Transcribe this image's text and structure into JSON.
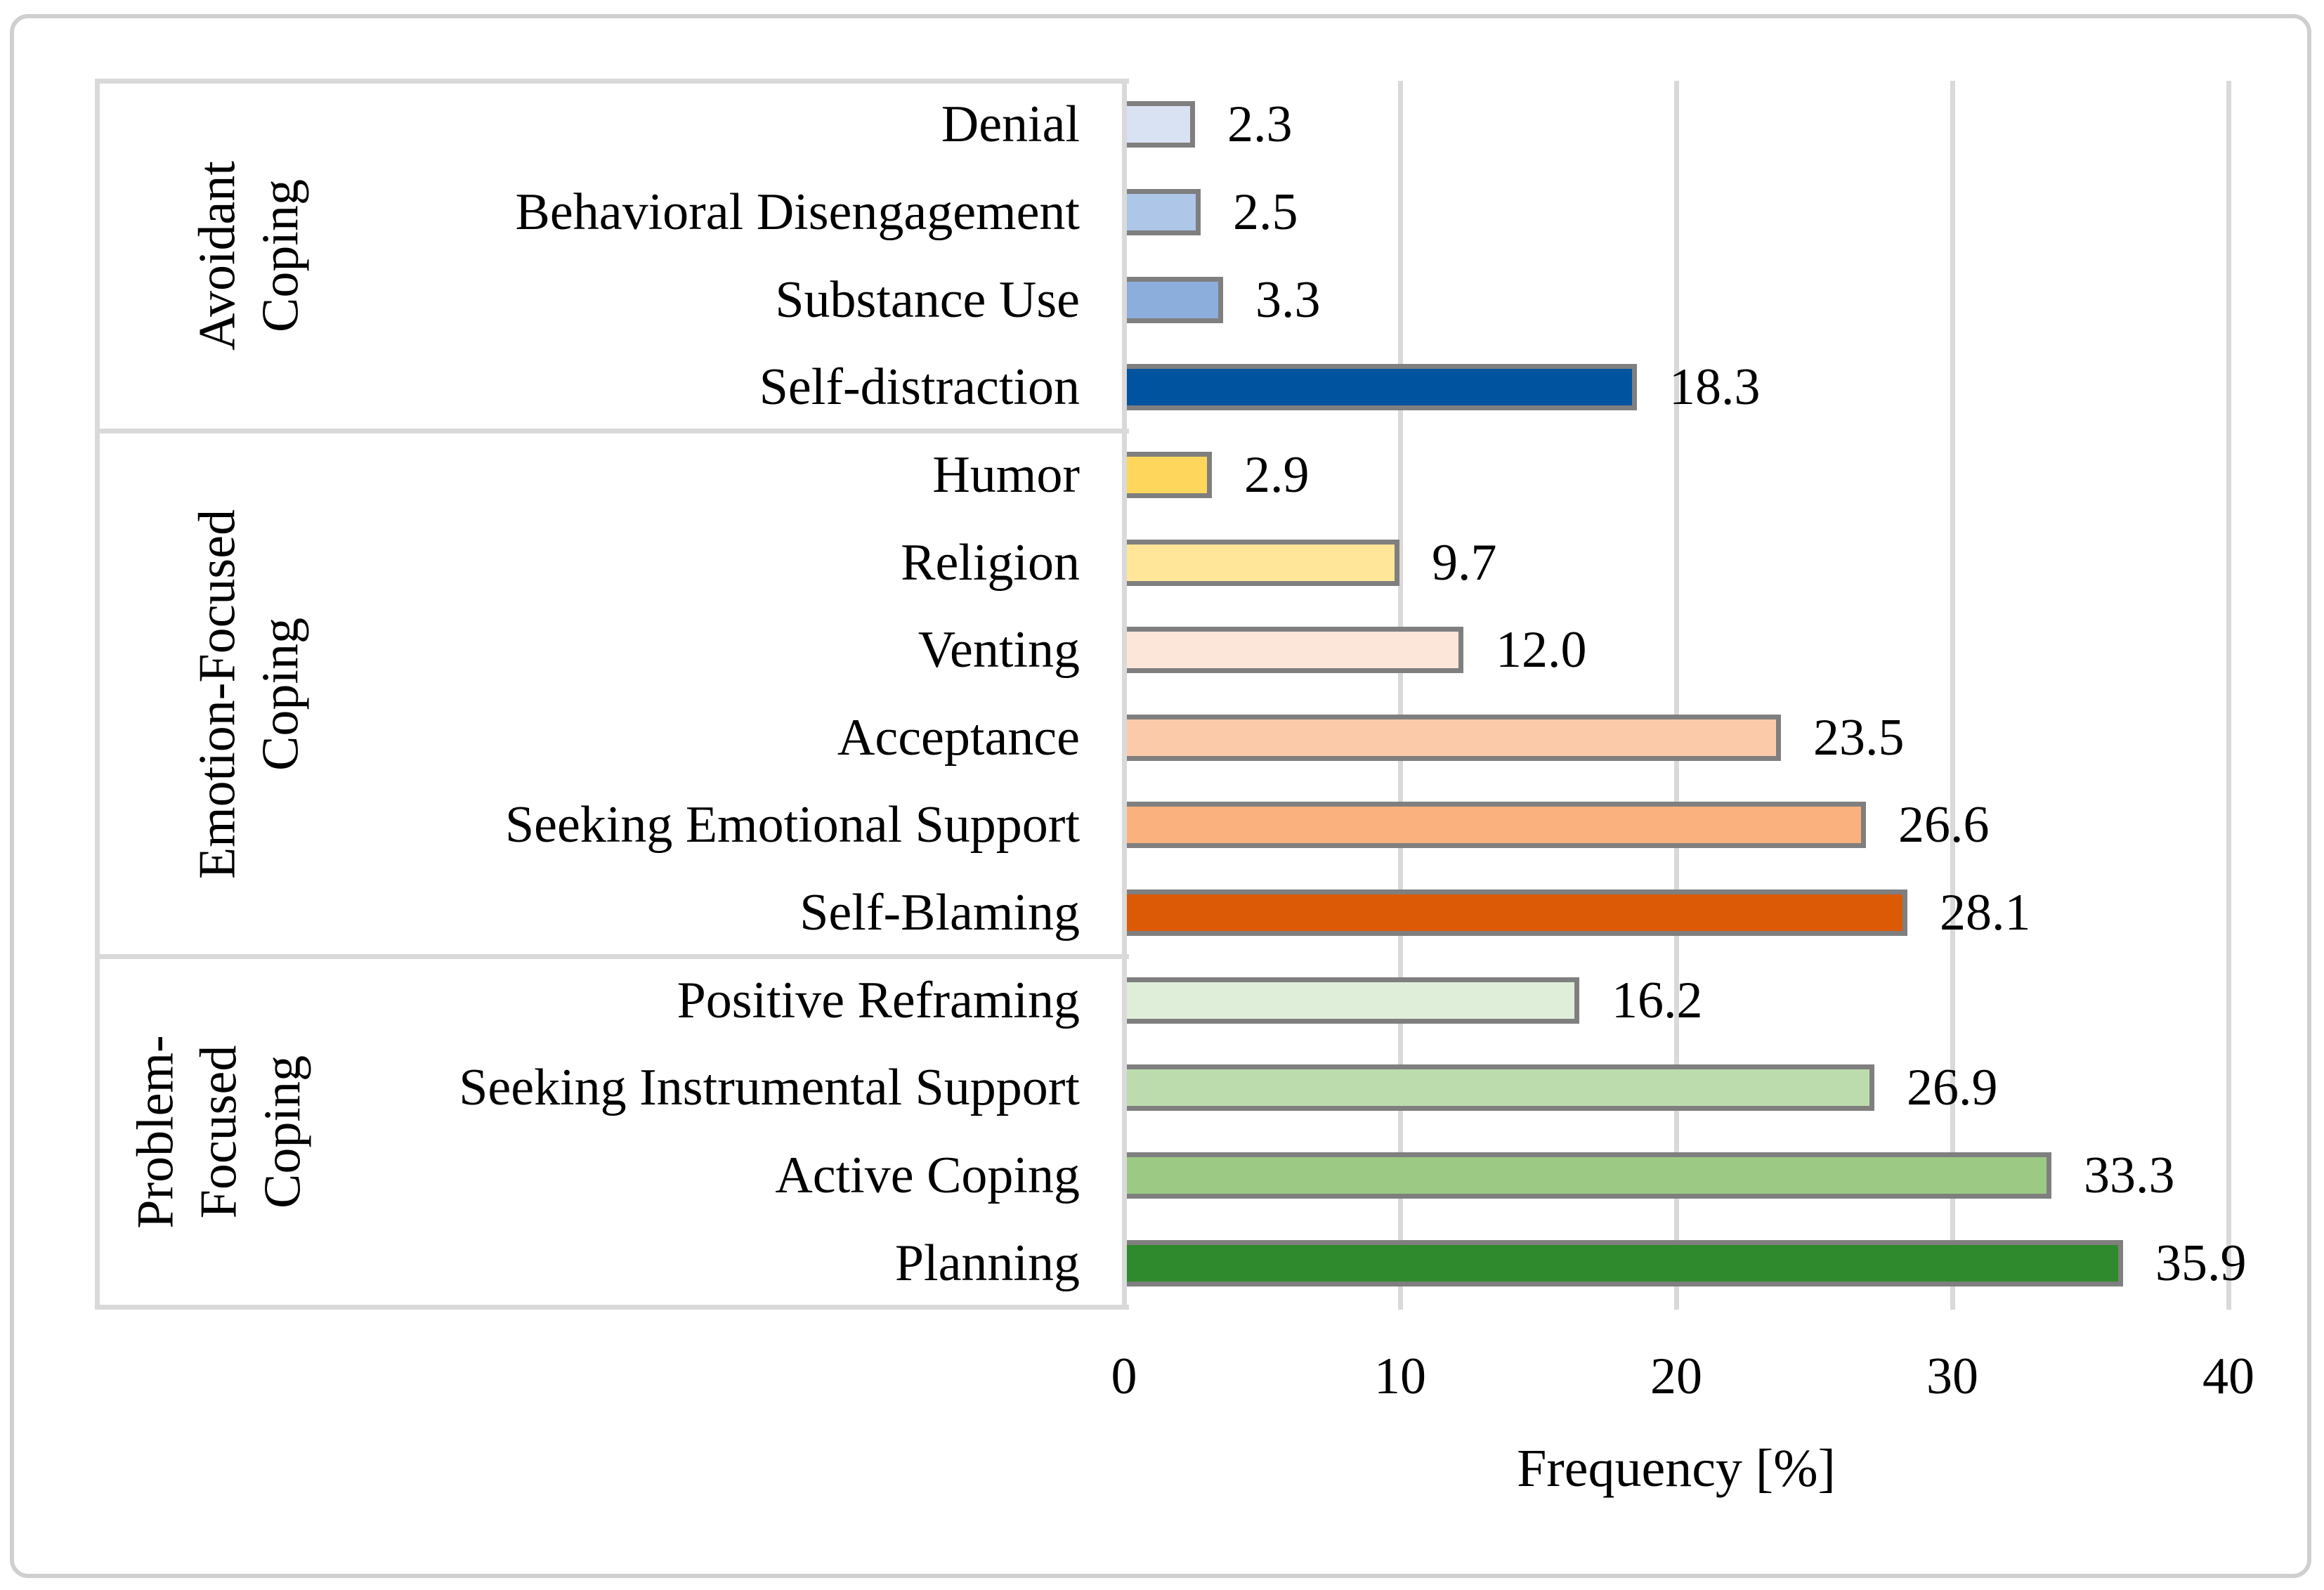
{
  "chart_data": {
    "type": "bar",
    "orientation": "horizontal",
    "xlabel": "Frequency [%]",
    "xlim": [
      0,
      40
    ],
    "x_ticks": [
      0,
      10,
      20,
      30,
      40
    ],
    "x_tick_labels": [
      "0",
      "10",
      "20",
      "30",
      "40"
    ],
    "grid": true,
    "bar_border_color": "#7f7f7f",
    "gridline_color": "#d9d9d9",
    "groups": [
      {
        "name": "Avoidant Coping",
        "label_lines": [
          "Avoidant",
          "Coping"
        ],
        "items": [
          {
            "category": "Denial",
            "value": 2.3,
            "value_label": "2.3",
            "color": "#d9e2f3"
          },
          {
            "category": "Behavioral Disengagement",
            "value": 2.5,
            "value_label": "2.5",
            "color": "#aec6e8"
          },
          {
            "category": "Substance Use",
            "value": 3.3,
            "value_label": "3.3",
            "color": "#8caedc"
          },
          {
            "category": "Self-distraction",
            "value": 18.3,
            "value_label": "18.3",
            "color": "#00539e"
          }
        ]
      },
      {
        "name": "Emotion-Focused Coping",
        "label_lines": [
          "Emotion-Focused",
          "Coping"
        ],
        "items": [
          {
            "category": "Humor",
            "value": 2.9,
            "value_label": "2.9",
            "color": "#ffd65c"
          },
          {
            "category": "Religion",
            "value": 9.7,
            "value_label": "9.7",
            "color": "#ffe699"
          },
          {
            "category": "Venting",
            "value": 12.0,
            "value_label": "12.0",
            "color": "#fce6d9"
          },
          {
            "category": "Acceptance",
            "value": 23.5,
            "value_label": "23.5",
            "color": "#fbcba9"
          },
          {
            "category": "Seeking Emotional Support",
            "value": 26.6,
            "value_label": "26.6",
            "color": "#fab17e"
          },
          {
            "category": "Self-Blaming",
            "value": 28.1,
            "value_label": "28.1",
            "color": "#dc5a06"
          }
        ]
      },
      {
        "name": "Problem-Focused Coping",
        "label_lines": [
          "Problem-",
          "Focused",
          "Coping"
        ],
        "items": [
          {
            "category": "Positive Reframing",
            "value": 16.2,
            "value_label": "16.2",
            "color": "#dfeed9"
          },
          {
            "category": "Seeking Instrumental Support",
            "value": 26.9,
            "value_label": "26.9",
            "color": "#bddcae"
          },
          {
            "category": "Active Coping",
            "value": 33.3,
            "value_label": "33.3",
            "color": "#9cca84"
          },
          {
            "category": "Planning",
            "value": 35.9,
            "value_label": "35.9",
            "color": "#2e8a2c"
          }
        ]
      }
    ]
  }
}
